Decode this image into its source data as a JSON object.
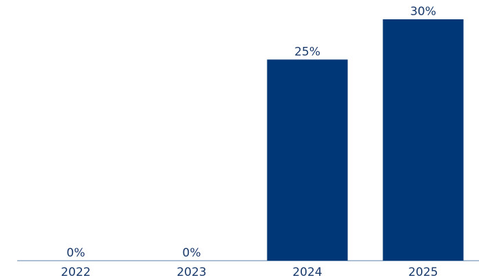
{
  "chart_data": {
    "type": "bar",
    "categories": [
      "2022",
      "2023",
      "2024",
      "2025"
    ],
    "values": [
      0,
      0,
      25,
      30
    ],
    "value_labels": [
      "0%",
      "0%",
      "25%",
      "30%"
    ],
    "color": "#003776"
  }
}
